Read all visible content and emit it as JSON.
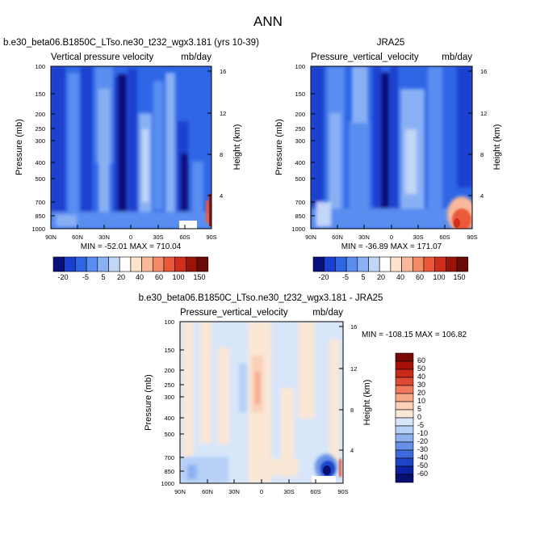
{
  "figure_title": "ANN",
  "panels": {
    "model": {
      "title": "b.e30_beta06.B1850C_LTso.ne30_t232_wgx3.181 (yrs 10-39)",
      "left_label": "Vertical pressure velocity",
      "right_label": "mb/day",
      "stats": "MIN = -52.01   MAX = 710.04"
    },
    "obs": {
      "title": "JRA25",
      "left_label": "Pressure_vertical_velocity",
      "right_label": "mb/day",
      "stats": "MIN = -36.89   MAX = 171.07"
    },
    "diff": {
      "title": "b.e30_beta06.B1850C_LTso.ne30_t232_wgx3.181 - JRA25",
      "left_label": "Pressure_vertical_velocity",
      "right_label": "mb/day",
      "stats": "MIN = -108.15   MAX = 106.82"
    }
  },
  "axes": {
    "ylabel": "Pressure (mb)",
    "ylabel_right": "Height (km)",
    "pressure_ticks": [
      "100",
      "150",
      "200",
      "250",
      "300",
      "400",
      "500",
      "700",
      "850",
      "1000"
    ],
    "height_ticks": [
      "4",
      "8",
      "12",
      "16"
    ],
    "lat_ticks": [
      "90N",
      "60N",
      "30N",
      "0",
      "30S",
      "60S",
      "90S"
    ]
  },
  "colorbars": {
    "top_labels": [
      "-20",
      "-5",
      "5",
      "20",
      "40",
      "60",
      "100",
      "150"
    ],
    "diff_labels": [
      "60",
      "50",
      "40",
      "30",
      "20",
      "10",
      "5",
      "0",
      "-5",
      "-10",
      "-20",
      "-30",
      "-40",
      "-50",
      "-60"
    ]
  },
  "colors": {
    "top_scale": [
      "#08107a",
      "#1a3fcf",
      "#2e66e6",
      "#5a8df0",
      "#8ab0f4",
      "#c2d6f8",
      "#ffffff",
      "#fde2cc",
      "#f9b99a",
      "#f48a66",
      "#ea5a3a",
      "#d02d1a",
      "#9a1408",
      "#6a0a04"
    ],
    "diff_scale": [
      "#7a0804",
      "#a6120a",
      "#c82a1a",
      "#e04a32",
      "#f07a5e",
      "#f6a888",
      "#fad0b8",
      "#fbe7d6",
      "#d8e6fa",
      "#b8d0f6",
      "#8eb2f0",
      "#6690e8",
      "#3f6ade",
      "#1f44c8",
      "#0c22a0",
      "#06106e"
    ]
  },
  "chart_data": [
    {
      "type": "heatmap",
      "title": "b.e30_beta06.B1850C_LTso.ne30_t232_wgx3.181 (yrs 10-39)",
      "variable": "Vertical pressure velocity",
      "units": "mb/day",
      "xlabel": "",
      "ylabel": "Pressure (mb)",
      "ylabel_right": "Height (km)",
      "x_ticks": [
        "90N",
        "60N",
        "30N",
        "0",
        "30S",
        "60S",
        "90S"
      ],
      "y_ticks": [
        100,
        150,
        200,
        250,
        300,
        400,
        500,
        700,
        850,
        1000
      ],
      "min": -52.01,
      "max": 710.04
    },
    {
      "type": "heatmap",
      "title": "JRA25",
      "variable": "Pressure_vertical_velocity",
      "units": "mb/day",
      "xlabel": "",
      "ylabel": "Pressure (mb)",
      "ylabel_right": "Height (km)",
      "x_ticks": [
        "90N",
        "60N",
        "30N",
        "0",
        "30S",
        "60S",
        "90S"
      ],
      "y_ticks": [
        100,
        150,
        200,
        250,
        300,
        400,
        500,
        700,
        850,
        1000
      ],
      "min": -36.89,
      "max": 171.07
    },
    {
      "type": "heatmap",
      "title": "b.e30_beta06.B1850C_LTso.ne30_t232_wgx3.181 - JRA25",
      "variable": "Pressure_vertical_velocity",
      "units": "mb/day",
      "xlabel": "",
      "ylabel": "Pressure (mb)",
      "ylabel_right": "Height (km)",
      "x_ticks": [
        "90N",
        "60N",
        "30N",
        "0",
        "30S",
        "60S",
        "90S"
      ],
      "y_ticks": [
        100,
        150,
        200,
        250,
        300,
        400,
        500,
        700,
        850,
        1000
      ],
      "min": -108.15,
      "max": 106.82
    }
  ]
}
